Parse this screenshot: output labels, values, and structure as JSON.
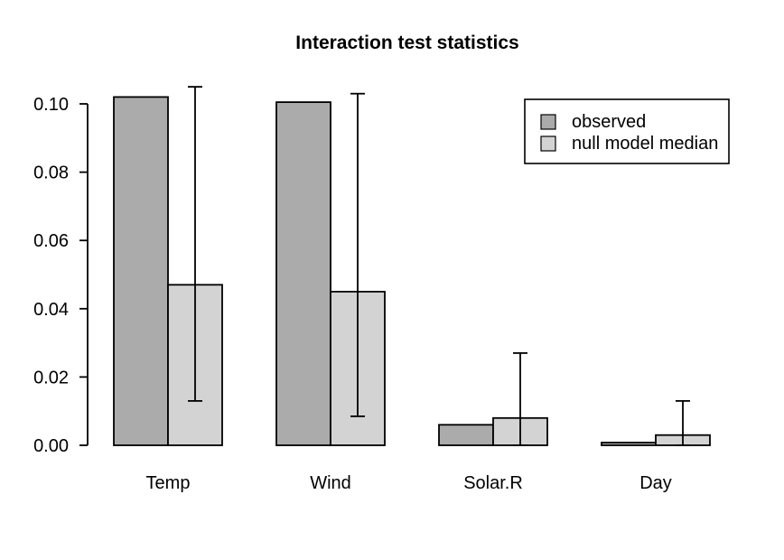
{
  "figure": {
    "background": "#ffffff"
  },
  "chart_data": {
    "type": "bar",
    "title": "Interaction test statistics",
    "categories": [
      "Temp",
      "Wind",
      "Solar.R",
      "Day"
    ],
    "series": [
      {
        "name": "observed",
        "color": "#ababab",
        "values": [
          0.102,
          0.1005,
          0.006,
          0.0008
        ]
      },
      {
        "name": "null model median",
        "color": "#d3d3d3",
        "values": [
          0.047,
          0.045,
          0.008,
          0.003
        ]
      }
    ],
    "error_bars": {
      "on_series": "null model median",
      "upper": [
        0.105,
        0.103,
        0.027,
        0.013
      ],
      "lower": [
        0.013,
        0.0085,
        0.0,
        0.0
      ]
    },
    "xlabel": "",
    "ylabel": "",
    "ylim": [
      0,
      0.1
    ],
    "yticks": [
      0,
      0.02,
      0.04,
      0.06,
      0.08,
      0.1
    ],
    "ytick_labels": [
      "0.00",
      "0.02",
      "0.04",
      "0.06",
      "0.08",
      "0.10"
    ],
    "grid": false,
    "legend": {
      "position": "top-right",
      "entries": [
        "observed",
        "null model median"
      ]
    },
    "colors": {
      "bar_border": "#000000",
      "axis": "#000000",
      "legend_border": "#000000"
    }
  }
}
